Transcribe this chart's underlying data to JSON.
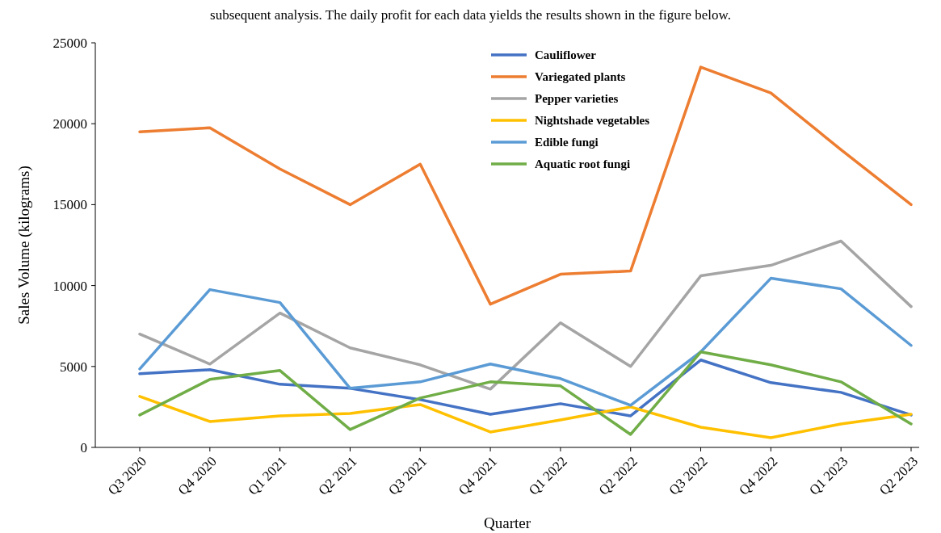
{
  "chart_data": {
    "type": "line",
    "xlabel": "Quarter",
    "ylabel": "Sales Volume (kilograms)",
    "annotations": [
      "subsequent analysis. The daily profit for each data yields the results shown in the figure below."
    ],
    "categories": [
      "Q3 2020",
      "Q4 2020",
      "Q1 2021",
      "Q2 2021",
      "Q3 2021",
      "Q4 2021",
      "Q1 2022",
      "Q2 2022",
      "Q3 2022",
      "Q4 2022",
      "Q1 2023",
      "Q2 2023"
    ],
    "ylim": [
      0,
      25000
    ],
    "yticks": [
      0,
      5000,
      10000,
      15000,
      20000,
      25000
    ],
    "grid": false,
    "legend": "top",
    "marker": "none",
    "line_style": "solid",
    "series": [
      {
        "name": "Cauliflower",
        "color": "#4472c4",
        "values": [
          4550,
          4800,
          3900,
          3650,
          2950,
          2050,
          2700,
          1950,
          5400,
          4000,
          3400,
          2000
        ]
      },
      {
        "name": "Variegated plants",
        "color": "#ed7d31",
        "values": [
          19500,
          19750,
          17200,
          15000,
          17500,
          8850,
          10700,
          10900,
          23500,
          21900,
          18400,
          15000
        ]
      },
      {
        "name": "Pepper varieties",
        "color": "#a5a5a5",
        "values": [
          7000,
          5150,
          8300,
          6150,
          5100,
          3600,
          7700,
          5000,
          10600,
          11250,
          12750,
          8700
        ]
      },
      {
        "name": "Nightshade vegetables",
        "color": "#ffc000",
        "values": [
          3150,
          1600,
          1950,
          2100,
          2650,
          950,
          1700,
          2500,
          1250,
          600,
          1450,
          2050
        ]
      },
      {
        "name": "Edible fungi",
        "color": "#5b9bd5",
        "values": [
          4850,
          9750,
          8950,
          3650,
          4050,
          5150,
          4250,
          2600,
          5900,
          10450,
          9800,
          6300
        ]
      },
      {
        "name": "Aquatic root fungi",
        "color": "#70ad47",
        "values": [
          2000,
          4200,
          4750,
          1100,
          3050,
          4050,
          3800,
          800,
          5900,
          5100,
          4050,
          1450
        ]
      }
    ]
  }
}
